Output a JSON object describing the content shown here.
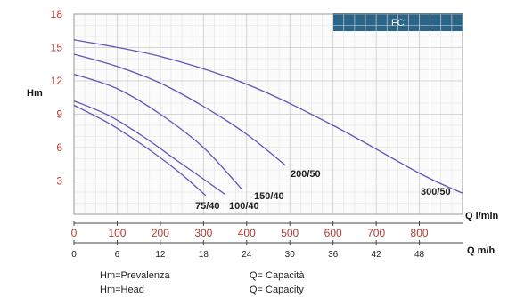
{
  "chart_data": {
    "type": "line",
    "title": "",
    "ylabel": "Hm",
    "xlabel_primary": "Q l/min",
    "xlabel_secondary": "Q m/h",
    "ylim": [
      0,
      18
    ],
    "xlim": [
      0,
      900
    ],
    "grid": true,
    "y_ticks": [
      "3",
      "6",
      "9",
      "12",
      "15",
      "18"
    ],
    "x_ticks_lmin": [
      "0",
      "100",
      "200",
      "300",
      "400",
      "500",
      "600",
      "700",
      "800"
    ],
    "x_ticks_m3h": [
      "0",
      "6",
      "12",
      "18",
      "24",
      "30",
      "36",
      "42",
      "48"
    ],
    "series": [
      {
        "name": "75/40",
        "x": [
          0,
          80,
          160,
          240,
          305
        ],
        "y": [
          9.8,
          8.2,
          6.2,
          3.9,
          1.7
        ]
      },
      {
        "name": "100/40",
        "x": [
          0,
          80,
          160,
          240,
          310,
          350
        ],
        "y": [
          10.2,
          8.9,
          7.0,
          4.8,
          2.9,
          1.8
        ]
      },
      {
        "name": "150/40",
        "x": [
          0,
          100,
          200,
          300,
          390
        ],
        "y": [
          12.6,
          11.3,
          9.0,
          6.0,
          2.2
        ]
      },
      {
        "name": "200/50",
        "x": [
          0,
          100,
          200,
          300,
          400,
          490
        ],
        "y": [
          14.4,
          13.3,
          11.8,
          9.7,
          7.2,
          4.4
        ]
      },
      {
        "name": "300/50",
        "x": [
          0,
          200,
          400,
          600,
          800,
          900
        ],
        "y": [
          15.7,
          14.2,
          11.7,
          8.0,
          3.7,
          1.9
        ]
      }
    ],
    "band_label": "FC",
    "band_color": "#2a6588",
    "curve_color": "#5e54b8",
    "label_color": "#b23b35"
  },
  "legend": {
    "line1_left": "Hm=Prevalenza",
    "line1_right": "Q= Capacità",
    "line2_left": "Hm=Head",
    "line2_right": "Q= Capacity"
  }
}
